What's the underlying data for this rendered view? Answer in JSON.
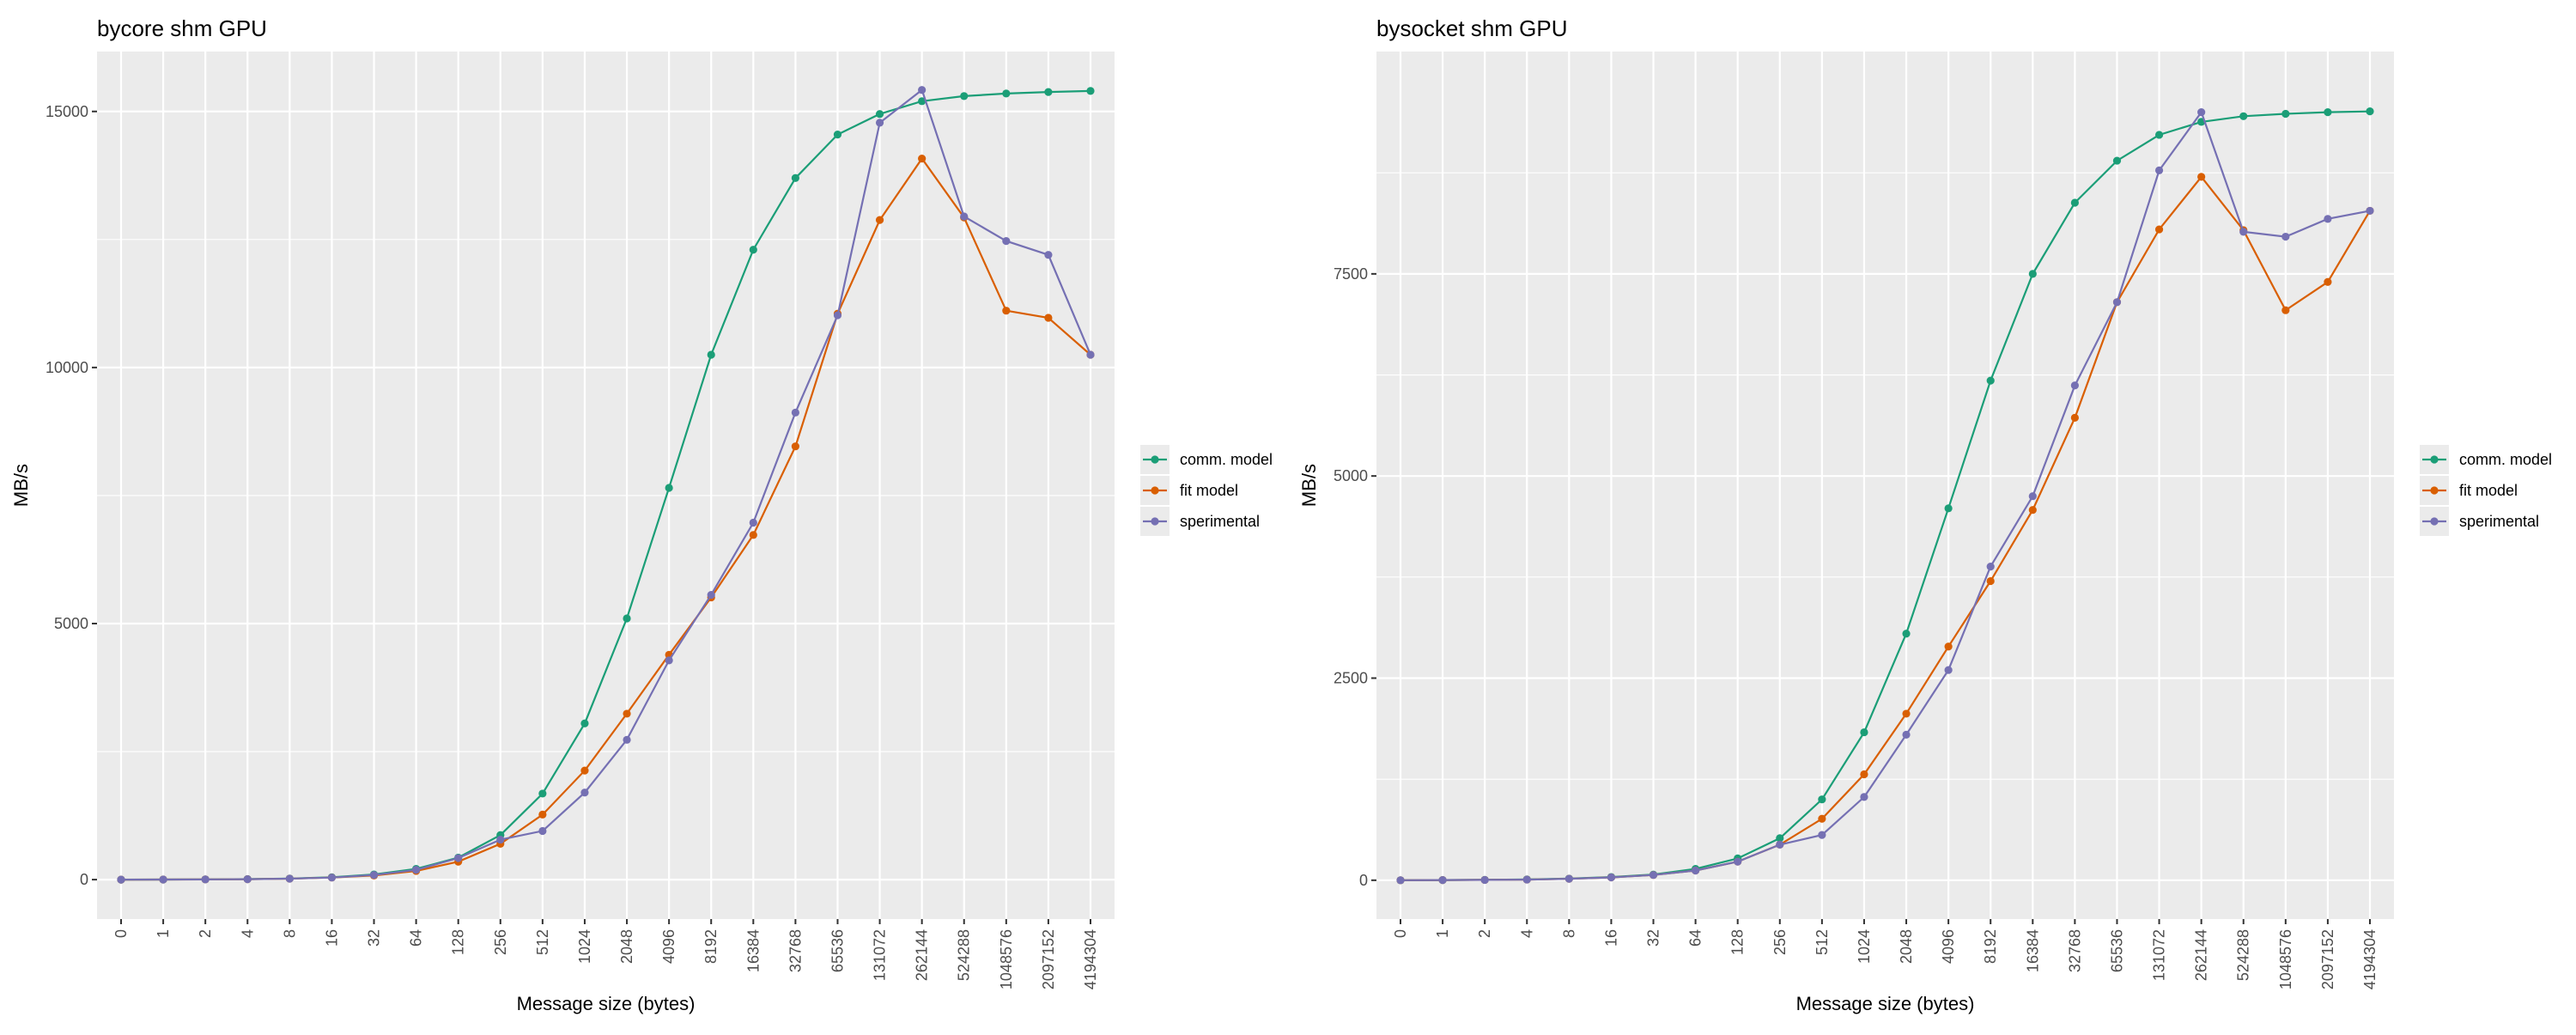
{
  "colors": {
    "comm": "#1b9e77",
    "fit": "#d95f02",
    "exp": "#7570b3",
    "panel": "#ebebeb",
    "grid": "#ffffff",
    "text": "#000000",
    "tick_text": "#4d4d4d"
  },
  "chart_data": [
    {
      "type": "line",
      "title": "bycore shm GPU",
      "xlabel": "Message size (bytes)",
      "ylabel": "MB/s",
      "categories": [
        "0",
        "1",
        "2",
        "4",
        "8",
        "16",
        "32",
        "64",
        "128",
        "256",
        "512",
        "1024",
        "2048",
        "4096",
        "8192",
        "16384",
        "32768",
        "65536",
        "131072",
        "262144",
        "524288",
        "1048576",
        "2097152",
        "4194304"
      ],
      "ylim": [
        -770,
        16170
      ],
      "yticks": [
        0,
        5000,
        10000,
        15000
      ],
      "ytick_labels": [
        "0",
        "5000",
        "10000",
        "15000"
      ],
      "grid": true,
      "legend_position": "right",
      "series": [
        {
          "name": "comm. model",
          "color_key": "comm",
          "values": [
            0,
            2,
            5,
            10,
            20,
            45,
            100,
            210,
            430,
            870,
            1680,
            3050,
            5100,
            7650,
            10250,
            12300,
            13700,
            14550,
            14950,
            15200,
            15300,
            15350,
            15380,
            15400
          ]
        },
        {
          "name": "fit model",
          "color_key": "fit",
          "values": [
            0,
            2,
            4,
            8,
            18,
            40,
            80,
            170,
            350,
            700,
            1270,
            2130,
            3240,
            4390,
            5510,
            6730,
            8460,
            11050,
            12880,
            14080,
            12930,
            11110,
            10970,
            10250
          ]
        },
        {
          "name": "sperimental",
          "color_key": "exp",
          "values": [
            0,
            2,
            4,
            8,
            18,
            40,
            90,
            190,
            420,
            780,
            950,
            1700,
            2730,
            4280,
            5560,
            6970,
            9120,
            11020,
            14780,
            15420,
            12950,
            12470,
            12200,
            10250
          ]
        }
      ]
    },
    {
      "type": "line",
      "title": "bysocket shm GPU",
      "xlabel": "Message size (bytes)",
      "ylabel": "MB/s",
      "categories": [
        "0",
        "1",
        "2",
        "4",
        "8",
        "16",
        "32",
        "64",
        "128",
        "256",
        "512",
        "1024",
        "2048",
        "4096",
        "8192",
        "16384",
        "32768",
        "65536",
        "131072",
        "262144",
        "524288",
        "1048576",
        "2097152",
        "4194304"
      ],
      "ylim": [
        -480,
        10250
      ],
      "yticks": [
        0,
        2500,
        5000,
        7500
      ],
      "ytick_labels": [
        "0",
        "2500",
        "5000",
        "7500"
      ],
      "grid": true,
      "legend_position": "right",
      "series": [
        {
          "name": "comm. model",
          "color_key": "comm",
          "values": [
            0,
            2,
            5,
            10,
            20,
            40,
            70,
            140,
            270,
            520,
            1000,
            1830,
            3050,
            4600,
            6180,
            7500,
            8380,
            8900,
            9220,
            9380,
            9450,
            9480,
            9500,
            9510
          ]
        },
        {
          "name": "fit model",
          "color_key": "fit",
          "values": [
            0,
            2,
            4,
            8,
            18,
            35,
            65,
            120,
            230,
            440,
            760,
            1310,
            2060,
            2890,
            3700,
            4580,
            5720,
            7150,
            8050,
            8700,
            8040,
            7050,
            7400,
            8280
          ]
        },
        {
          "name": "sperimental",
          "color_key": "exp",
          "values": [
            0,
            2,
            4,
            8,
            18,
            35,
            65,
            120,
            230,
            440,
            560,
            1030,
            1800,
            2600,
            3880,
            4750,
            6120,
            7150,
            8780,
            9500,
            8020,
            7960,
            8180,
            8280
          ]
        }
      ]
    }
  ]
}
